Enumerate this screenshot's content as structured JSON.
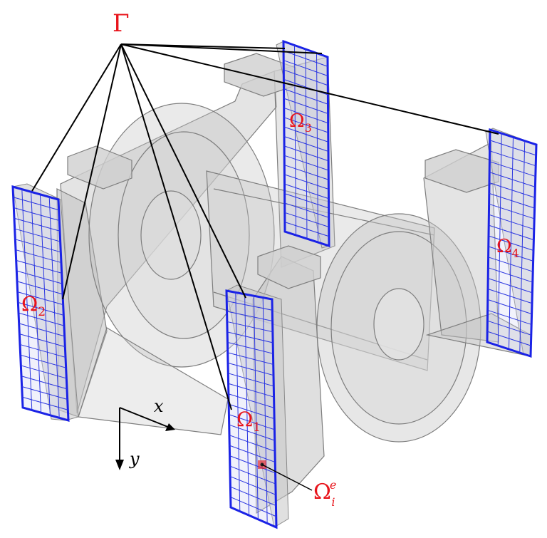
{
  "labels": {
    "gamma": "Γ",
    "omega1": {
      "base": "Ω",
      "sub": "1"
    },
    "omega2": {
      "base": "Ω",
      "sub": "2"
    },
    "omega3": {
      "base": "Ω",
      "sub": "3"
    },
    "omega4": {
      "base": "Ω",
      "sub": "4"
    },
    "omega_elem": {
      "base": "Ω",
      "sub": "i",
      "sup": "e"
    }
  },
  "axes": {
    "x": "x",
    "y": "y"
  },
  "colors": {
    "label": "#e8141b",
    "panel_edge": "#1a22e6",
    "panel_grid": "#2a35e0",
    "panel_fill": "#cfd3f2",
    "body_fill": "#c8c8c8",
    "body_edge": "#8a8a8a",
    "lines": "#000000",
    "element": "#e8141b"
  },
  "panels": [
    {
      "name": "Ω1",
      "cols": 5,
      "rows": 21
    },
    {
      "name": "Ω2",
      "cols": 5,
      "rows": 21
    },
    {
      "name": "Ω3",
      "cols": 4,
      "rows": 20
    },
    {
      "name": "Ω4",
      "cols": 4,
      "rows": 20
    }
  ]
}
